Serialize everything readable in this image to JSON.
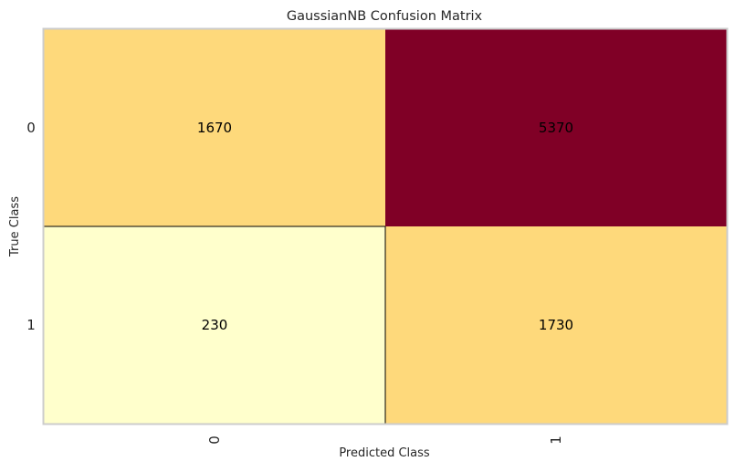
{
  "chart_data": {
    "type": "heatmap",
    "title": "GaussianNB Confusion Matrix",
    "xlabel": "Predicted Class",
    "ylabel": "True Class",
    "x_categories": [
      "0",
      "1"
    ],
    "y_categories": [
      "0",
      "1"
    ],
    "values": [
      [
        1670,
        5370
      ],
      [
        230,
        1730
      ]
    ],
    "cell_colors": [
      [
        "#fed97b",
        "#800026"
      ],
      [
        "#ffffcc",
        "#fed97b"
      ]
    ],
    "cell_text_color": "#000000",
    "grid": false
  }
}
